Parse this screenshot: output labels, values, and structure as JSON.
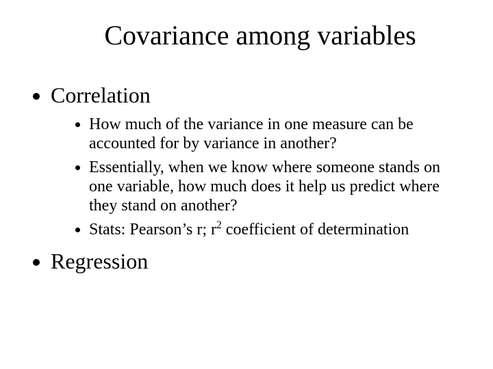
{
  "title": "Covariance among variables",
  "bullets": {
    "b1": "Correlation",
    "sub": {
      "s1": "How much of the variance in one measure can be accounted for by variance in another?",
      "s2": "Essentially, when we know where someone stands on one variable, how much does it help us predict where they stand on another?",
      "s3_prefix": "Stats: Pearson’s r; r",
      "s3_exp": "2",
      "s3_suffix": " coefficient of determination"
    },
    "b2": "Regression"
  },
  "colors": {
    "background": "#ffffff",
    "text": "#000000"
  },
  "typography": {
    "title_fontsize": 40,
    "level1_fontsize": 32,
    "level2_fontsize": 24,
    "font_family": "Times New Roman"
  }
}
